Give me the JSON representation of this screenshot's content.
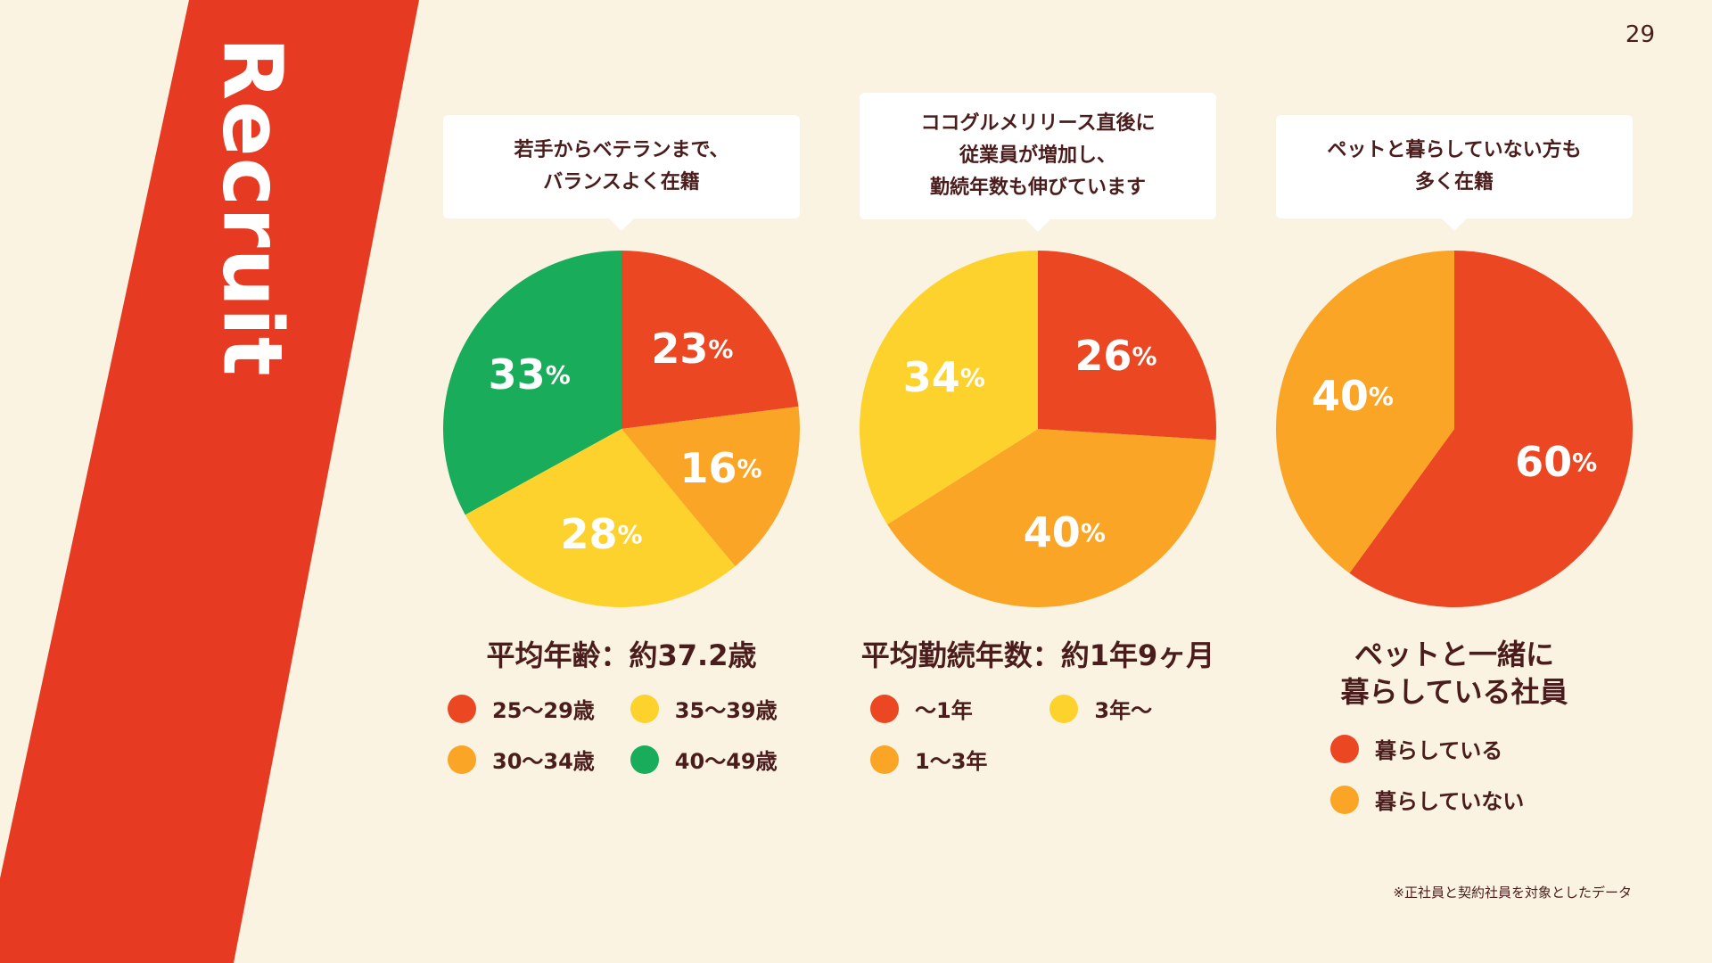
{
  "page": {
    "number": "29",
    "section": "Recruit",
    "footnote": "※正社員と契約社員を対象としたデータ"
  },
  "colors": {
    "background": "#FAF3E1",
    "band": "#E63A22",
    "red": "#EB4722",
    "orange": "#FAA526",
    "yellow": "#FDD22C",
    "green": "#19AD5B",
    "text": "#4A1C1C"
  },
  "charts": [
    {
      "bubble": [
        "若手からベテランまで、",
        "バランスよく在籍"
      ],
      "stat": [
        "平均年齢：約37.2歳"
      ],
      "legend": [
        "25〜29歳",
        "35〜39歳",
        "30〜34歳",
        "40〜49歳"
      ]
    },
    {
      "bubble": [
        "ココグルメリリース直後に",
        "従業員が増加し、",
        "勤続年数も伸びています"
      ],
      "stat": [
        "平均勤続年数：約1年9ヶ月"
      ],
      "legend": [
        "〜1年",
        "3年〜",
        "1〜3年"
      ]
    },
    {
      "bubble": [
        "ペットと暮らしていない方も",
        "多く在籍"
      ],
      "stat": [
        "ペットと一緒に",
        "暮らしている社員"
      ],
      "legend": [
        "暮らしている",
        "暮らしていない"
      ]
    }
  ],
  "chart_data": [
    {
      "type": "pie",
      "title": "平均年齢：約37.2歳",
      "categories": [
        "25〜29歳",
        "30〜34歳",
        "35〜39歳",
        "40〜49歳"
      ],
      "values": [
        23,
        16,
        28,
        33
      ],
      "labels": [
        "23%",
        "16%",
        "28%",
        "33%"
      ],
      "colors": [
        "#EB4722",
        "#FAA526",
        "#FDD22C",
        "#19AD5B"
      ]
    },
    {
      "type": "pie",
      "title": "平均勤続年数：約1年9ヶ月",
      "categories": [
        "〜1年",
        "1〜3年",
        "3年〜"
      ],
      "values": [
        26,
        40,
        34
      ],
      "labels": [
        "26%",
        "40%",
        "34%"
      ],
      "colors": [
        "#EB4722",
        "#FAA526",
        "#FDD22C"
      ]
    },
    {
      "type": "pie",
      "title": "ペットと一緒に暮らしている社員",
      "categories": [
        "暮らしている",
        "暮らしていない"
      ],
      "values": [
        60,
        40
      ],
      "labels": [
        "60%",
        "40%"
      ],
      "colors": [
        "#EB4722",
        "#FAA526"
      ]
    }
  ]
}
